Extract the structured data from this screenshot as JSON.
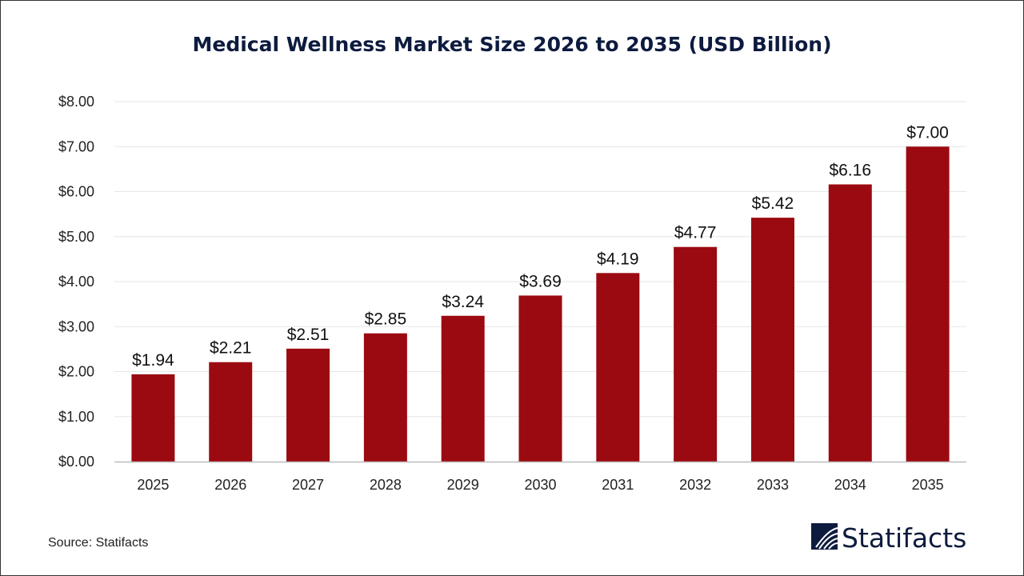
{
  "chart_data": {
    "type": "bar",
    "title": "Medical Wellness Market Size 2026 to 2035 (USD Billion)",
    "categories": [
      "2025",
      "2026",
      "2027",
      "2028",
      "2029",
      "2030",
      "2031",
      "2032",
      "2033",
      "2034",
      "2035"
    ],
    "values": [
      1.94,
      2.21,
      2.51,
      2.85,
      3.24,
      3.69,
      4.19,
      4.77,
      5.42,
      6.16,
      7.0
    ],
    "data_labels": [
      "$1.94",
      "$2.21",
      "$2.51",
      "$2.85",
      "$3.24",
      "$3.69",
      "$4.19",
      "$4.77",
      "$5.42",
      "$6.16",
      "$7.00"
    ],
    "yticks": [
      "$0.00",
      "$1.00",
      "$2.00",
      "$3.00",
      "$4.00",
      "$5.00",
      "$6.00",
      "$7.00",
      "$8.00"
    ],
    "ylim": [
      0,
      8
    ],
    "xlabel": "",
    "ylabel": "",
    "grid": true,
    "bar_color": "#9b0a10"
  },
  "source": "Source: Statifacts",
  "logo_text": "Statifacts"
}
